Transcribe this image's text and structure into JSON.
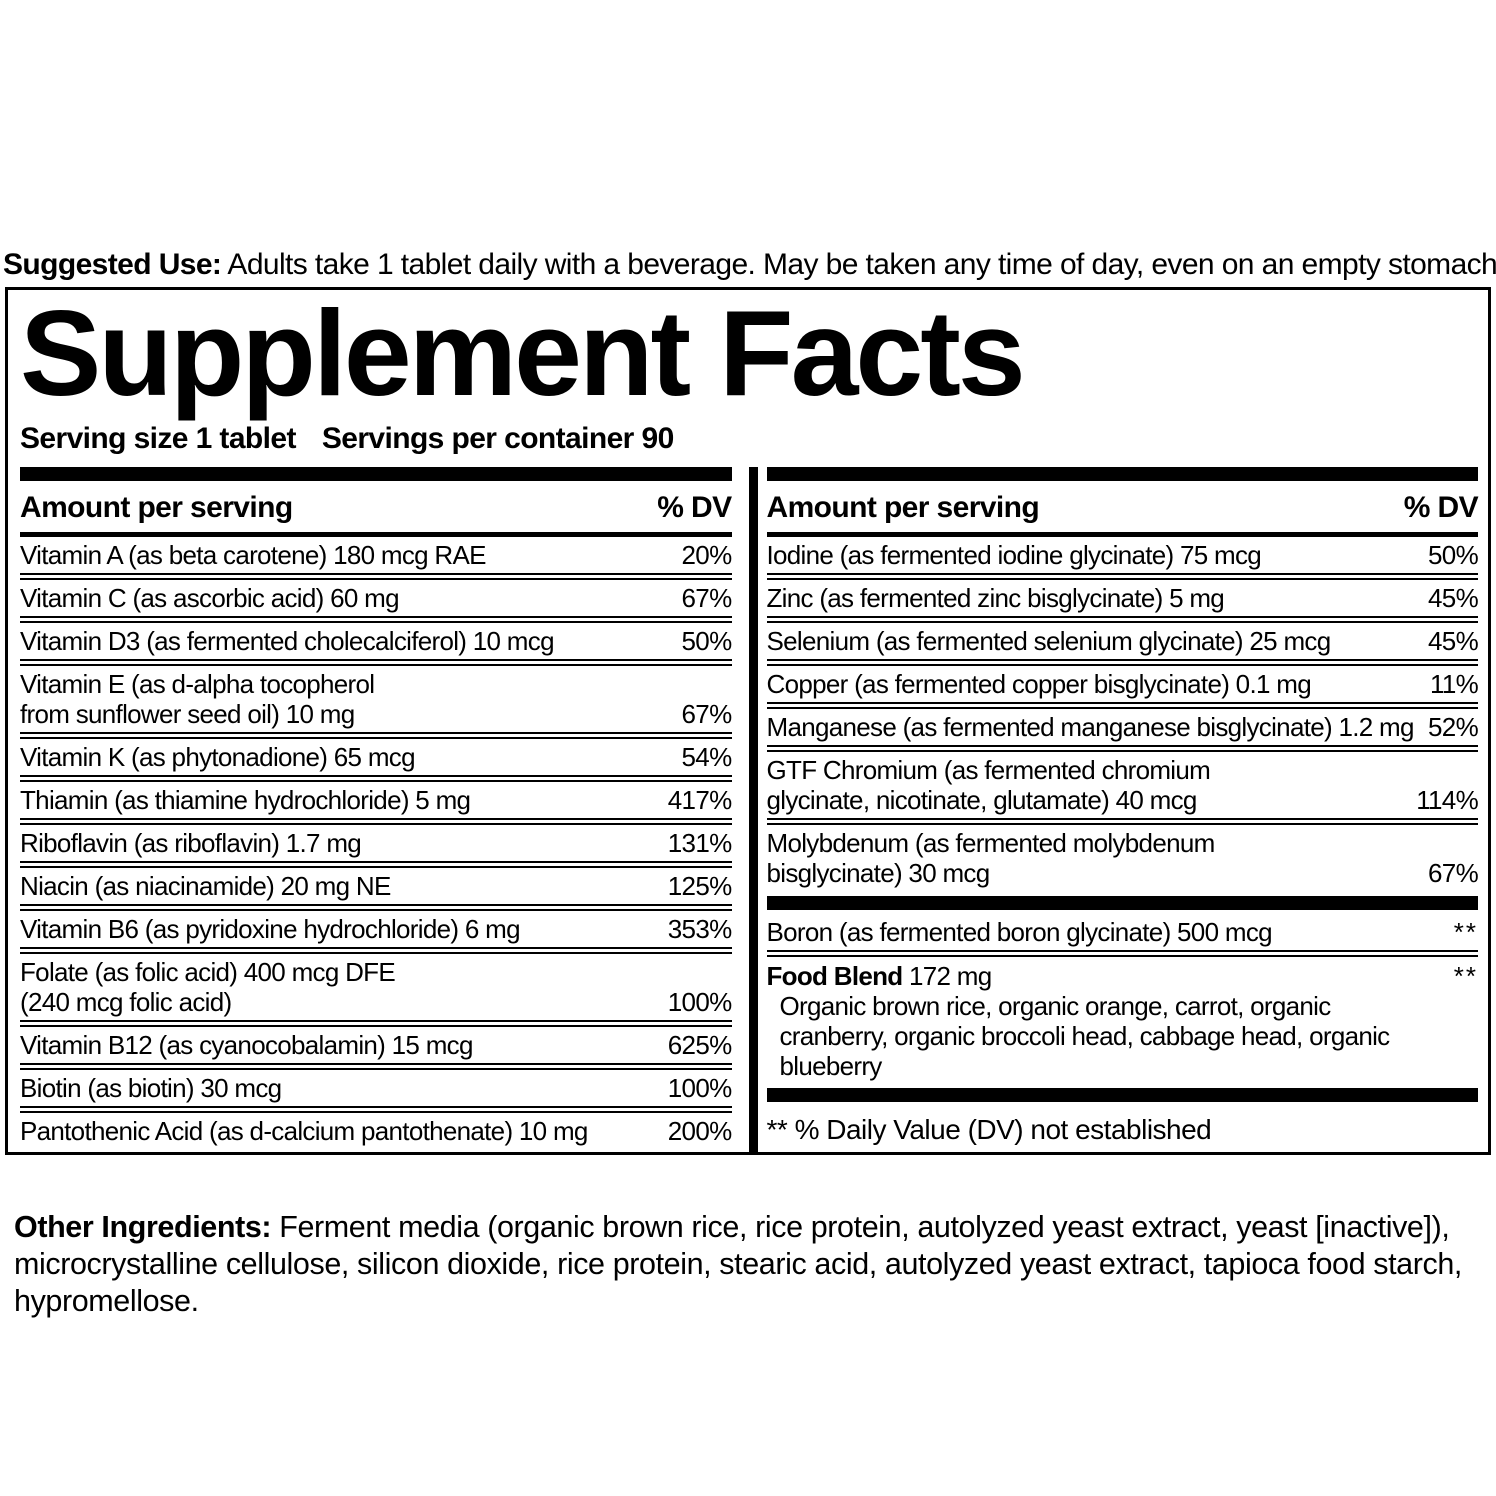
{
  "colors": {
    "text": "#000000",
    "background": "#ffffff"
  },
  "suggested_use": {
    "label": "Suggested Use:",
    "text": " Adults take 1 tablet daily with a beverage. May be taken any time of day, even on an empty stomach."
  },
  "panel": {
    "title": "Supplement Facts",
    "serving_size": "Serving size 1 tablet",
    "servings_per_container": "Servings per container 90",
    "column_header": {
      "amount": "Amount per serving",
      "dv": "% DV"
    },
    "left_rows": [
      {
        "lines": [
          "Vitamin A (as beta carotene) 180 mcg RAE"
        ],
        "dv": "20%"
      },
      {
        "lines": [
          "Vitamin C (as ascorbic acid) 60 mg"
        ],
        "dv": "67%"
      },
      {
        "lines": [
          "Vitamin D3 (as fermented cholecalciferol) 10 mcg"
        ],
        "dv": "50%"
      },
      {
        "lines": [
          "Vitamin E (as d-alpha tocopherol",
          "from sunflower seed oil) 10 mg"
        ],
        "dv": "67%"
      },
      {
        "lines": [
          "Vitamin K (as phytonadione) 65 mcg"
        ],
        "dv": "54%"
      },
      {
        "lines": [
          "Thiamin (as thiamine hydrochloride) 5 mg"
        ],
        "dv": "417%"
      },
      {
        "lines": [
          "Riboflavin (as riboflavin) 1.7 mg"
        ],
        "dv": "131%"
      },
      {
        "lines": [
          "Niacin (as niacinamide) 20 mg NE"
        ],
        "dv": "125%"
      },
      {
        "lines": [
          "Vitamin B6 (as pyridoxine hydrochloride) 6 mg"
        ],
        "dv": "353%"
      },
      {
        "lines": [
          "Folate (as folic acid) 400 mcg DFE",
          "(240 mcg folic acid)"
        ],
        "dv": "100%"
      },
      {
        "lines": [
          "Vitamin B12 (as cyanocobalamin) 15 mcg"
        ],
        "dv": "625%"
      },
      {
        "lines": [
          "Biotin (as biotin) 30 mcg"
        ],
        "dv": "100%"
      },
      {
        "lines": [
          "Pantothenic Acid (as d-calcium pantothenate) 10 mg"
        ],
        "dv": "200%"
      }
    ],
    "right_rows": [
      {
        "lines": [
          "Iodine (as fermented iodine glycinate) 75 mcg"
        ],
        "dv": "50%"
      },
      {
        "lines": [
          "Zinc (as fermented zinc bisglycinate) 5 mg"
        ],
        "dv": "45%"
      },
      {
        "lines": [
          "Selenium (as fermented selenium glycinate) 25 mcg"
        ],
        "dv": "45%"
      },
      {
        "lines": [
          "Copper (as fermented copper bisglycinate) 0.1 mg"
        ],
        "dv": "11%"
      },
      {
        "lines": [
          "Manganese (as fermented manganese bisglycinate) 1.2 mg"
        ],
        "dv": "52%"
      },
      {
        "lines": [
          "GTF Chromium (as fermented chromium",
          "glycinate, nicotinate, glutamate) 40 mcg"
        ],
        "dv": "114%"
      },
      {
        "lines": [
          "Molybdenum (as fermented molybdenum",
          "bisglycinate) 30 mcg"
        ],
        "dv": "67%"
      },
      {
        "type": "bar"
      },
      {
        "lines": [
          "Boron (as fermented boron glycinate) 500 mcg"
        ],
        "dv": "**"
      },
      {
        "type": "blend",
        "bold": "Food Blend",
        "rest": " 172 mg",
        "dv": "**",
        "description": [
          "Organic brown rice, organic orange, carrot, organic",
          "cranberry, organic broccoli head, cabbage head, organic",
          "blueberry"
        ]
      },
      {
        "type": "bar"
      },
      {
        "type": "footnote",
        "text": "** % Daily Value (DV) not established"
      }
    ]
  },
  "other_ingredients": {
    "label": "Other Ingredients:",
    "text": " Ferment media (organic brown rice, rice protein, autolyzed yeast extract, yeast [inactive]), microcrystalline cellulose, silicon dioxide, rice protein, stearic acid, autolyzed yeast extract, tapioca food starch, hypromellose."
  }
}
